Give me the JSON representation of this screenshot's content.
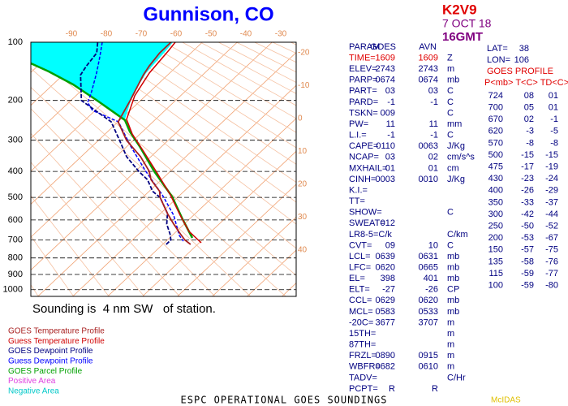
{
  "header": {
    "title": "Gunnison, CO",
    "station": "K2V9",
    "date": "7 OCT 18",
    "time": "16GMT"
  },
  "axes": {
    "pressure_labels": [
      100,
      200,
      300,
      400,
      500,
      600,
      700,
      800,
      900,
      1000
    ],
    "temperature_labels": [
      -90,
      -80,
      -70,
      -60,
      -50,
      -40,
      -30
    ],
    "isotherm_labels": [
      -20,
      -10,
      0,
      10,
      20,
      30,
      40
    ]
  },
  "note": "Sounding is  4 nm SW   of station.",
  "legend": [
    {
      "text": "GOES Temperature Profile",
      "color": "#a82020"
    },
    {
      "text": "Guess Temperature Profile",
      "color": "#d00000"
    },
    {
      "text": "GOES Dewpoint Profile",
      "color": "#000080"
    },
    {
      "text": "Guess Dewpoint Profile",
      "color": "#0000ff"
    },
    {
      "text": "GOES Parcel Profile",
      "color": "#00a000"
    },
    {
      "text": "Positive Area",
      "color": "#e040e0"
    },
    {
      "text": "Negative Area",
      "color": "#00c8c8"
    }
  ],
  "params": {
    "header": [
      "PARAM",
      "GOES",
      "AVN"
    ],
    "rows": [
      [
        "TIME=",
        "1609",
        "1609",
        "Z"
      ],
      [
        "ELEV=",
        "2743",
        "2743",
        "m"
      ],
      [
        "PARP=",
        "0674",
        "0674",
        "mb"
      ],
      [
        "PART=",
        "03",
        "03",
        "C"
      ],
      [
        "PARD=",
        "-1",
        "-1",
        "C"
      ],
      [
        "TSKN=",
        "009",
        null,
        "C"
      ],
      [
        "PW=",
        "11",
        "11",
        "mm"
      ],
      [
        "L.I.=",
        "-1",
        "-1",
        "C"
      ],
      [
        "CAPE=",
        "0110",
        "0063",
        "J/Kg"
      ],
      [
        "NCAP=",
        "03",
        "02",
        "cm/s^s"
      ],
      [
        "MXHAIL=",
        "01",
        "01",
        "cm"
      ],
      [
        "CINH=",
        "0003",
        "0010",
        "J/Kg"
      ],
      [
        "K.I.=",
        null,
        null,
        null
      ],
      [
        "TT=",
        null,
        null,
        null
      ],
      [
        "SHOW=",
        null,
        null,
        "C"
      ],
      [
        "SWEAT=",
        "012",
        null,
        null
      ],
      [
        "LR8-5=C/k",
        null,
        null,
        "C/km"
      ],
      [
        "CVT=",
        "09",
        "10",
        "C"
      ],
      [
        "LCL=",
        "0639",
        "0631",
        "mb"
      ],
      [
        "LFC=",
        "0620",
        "0665",
        "mb"
      ],
      [
        "EL=",
        "398",
        "401",
        "mb"
      ],
      [
        "ELT=",
        "-27",
        "-26",
        "CP"
      ],
      [
        "CCL=",
        "0629",
        "0620",
        "mb"
      ],
      [
        "MCL=",
        "0583",
        "0533",
        "mb"
      ],
      [
        "-20C=",
        "3677",
        "3707",
        "m"
      ],
      [
        "15TH=",
        null,
        null,
        "m"
      ],
      [
        "87TH=",
        null,
        null,
        "m"
      ],
      [
        "FRZL=",
        "0890",
        "0915",
        "m"
      ],
      [
        "WBFR=",
        "0682",
        "0610",
        "m"
      ],
      [
        "TADV=",
        null,
        null,
        "C/Hr"
      ],
      [
        "PCPT=",
        "R",
        "R",
        null
      ]
    ]
  },
  "location": {
    "lat_label": "LAT=",
    "lat": "38",
    "lon_label": "LON=",
    "lon": "106"
  },
  "goes_profile": {
    "title": "GOES PROFILE",
    "header": "P<mb> T<C> TD<C>",
    "rows": [
      [
        "724",
        "08",
        "01"
      ],
      [
        "700",
        "05",
        "01"
      ],
      [
        "670",
        "02",
        "-1"
      ],
      [
        "620",
        "-3",
        "-5"
      ],
      [
        "570",
        "-8",
        "-8"
      ],
      [
        "500",
        "-15",
        "-15"
      ],
      [
        "475",
        "-17",
        "-19"
      ],
      [
        "430",
        "-23",
        "-24"
      ],
      [
        "400",
        "-26",
        "-29"
      ],
      [
        "350",
        "-33",
        "-37"
      ],
      [
        "300",
        "-42",
        "-44"
      ],
      [
        "250",
        "-50",
        "-52"
      ],
      [
        "200",
        "-53",
        "-67"
      ],
      [
        "150",
        "-57",
        "-75"
      ],
      [
        "135",
        "-58",
        "-76"
      ],
      [
        "115",
        "-59",
        "-77"
      ],
      [
        "100",
        "-59",
        "-80"
      ]
    ]
  },
  "footer": "ESPC OPERATIONAL GOES SOUNDINGS",
  "footer_right": "McIDAS"
}
